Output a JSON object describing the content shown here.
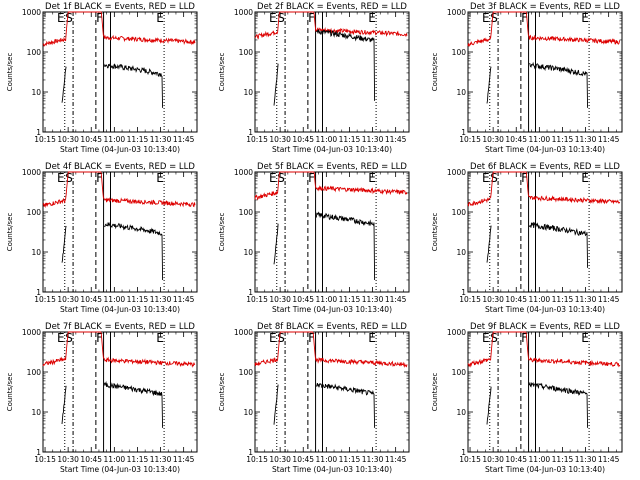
{
  "colors": {
    "events": "#000000",
    "lld": "#dd0000",
    "axes": "#000000",
    "background": "#ffffff"
  },
  "chart_data": {
    "type": "line",
    "layout": "3x3 grid of panels",
    "yscale": "log",
    "ylim": [
      1,
      1000
    ],
    "ytick_labels": [
      "1",
      "10",
      "100",
      "1000"
    ],
    "xlabel": "Start Time (04-Jun-03 10:13:40)",
    "ylabel": "Counts/sec",
    "xtick_labels": [
      "10:15",
      "10:30",
      "10:45",
      "11:00",
      "11:15",
      "11:30",
      "11:45"
    ],
    "xticks_min": [
      15,
      30,
      45,
      60,
      75,
      90,
      105
    ],
    "xlim_min": [
      13.67,
      113.67
    ],
    "markers": [
      {
        "label": "E",
        "x_min": 27.8,
        "style": "dotted"
      },
      {
        "label": "S",
        "x_min": 33.2,
        "style": "dash-dot"
      },
      {
        "label": "",
        "x_min": 48.0,
        "style": "dashed"
      },
      {
        "label": "F",
        "x_min": 53.0,
        "style": "solid"
      },
      {
        "label": "",
        "x_min": 57.5,
        "style": "solid"
      },
      {
        "label": "E",
        "x_min": 92.3,
        "style": "dotted"
      }
    ],
    "panels": [
      {
        "title": "Det 1f BLACK = Events, RED = LLD",
        "events_level": 48,
        "lld_level": 230,
        "events_end": 4,
        "lld_start": 150
      },
      {
        "title": "Det 2f BLACK = Events, RED = LLD",
        "events_level": 330,
        "lld_level": 360,
        "events_end": 6,
        "lld_start": 230
      },
      {
        "title": "Det 3f BLACK = Events, RED = LLD",
        "events_level": 48,
        "lld_level": 230,
        "events_end": 4,
        "lld_start": 150
      },
      {
        "title": "Det 4f BLACK = Events, RED = LLD",
        "events_level": 50,
        "lld_level": 200,
        "events_end": 2,
        "lld_start": 140
      },
      {
        "title": "Det 5f BLACK = Events, RED = LLD",
        "events_level": 85,
        "lld_level": 400,
        "events_end": 2,
        "lld_start": 220
      },
      {
        "title": "Det 6f BLACK = Events, RED = LLD",
        "events_level": 48,
        "lld_level": 230,
        "events_end": 4,
        "lld_start": 150
      },
      {
        "title": "Det 7f BLACK = Events, RED = LLD",
        "events_level": 48,
        "lld_level": 200,
        "events_end": 4,
        "lld_start": 150
      },
      {
        "title": "Det 8f BLACK = Events, RED = LLD",
        "events_level": 48,
        "lld_level": 200,
        "events_end": 4,
        "lld_start": 150
      },
      {
        "title": "Det 9f BLACK = Events, RED = LLD",
        "events_level": 48,
        "lld_level": 200,
        "events_end": 4,
        "lld_start": 150
      }
    ]
  }
}
